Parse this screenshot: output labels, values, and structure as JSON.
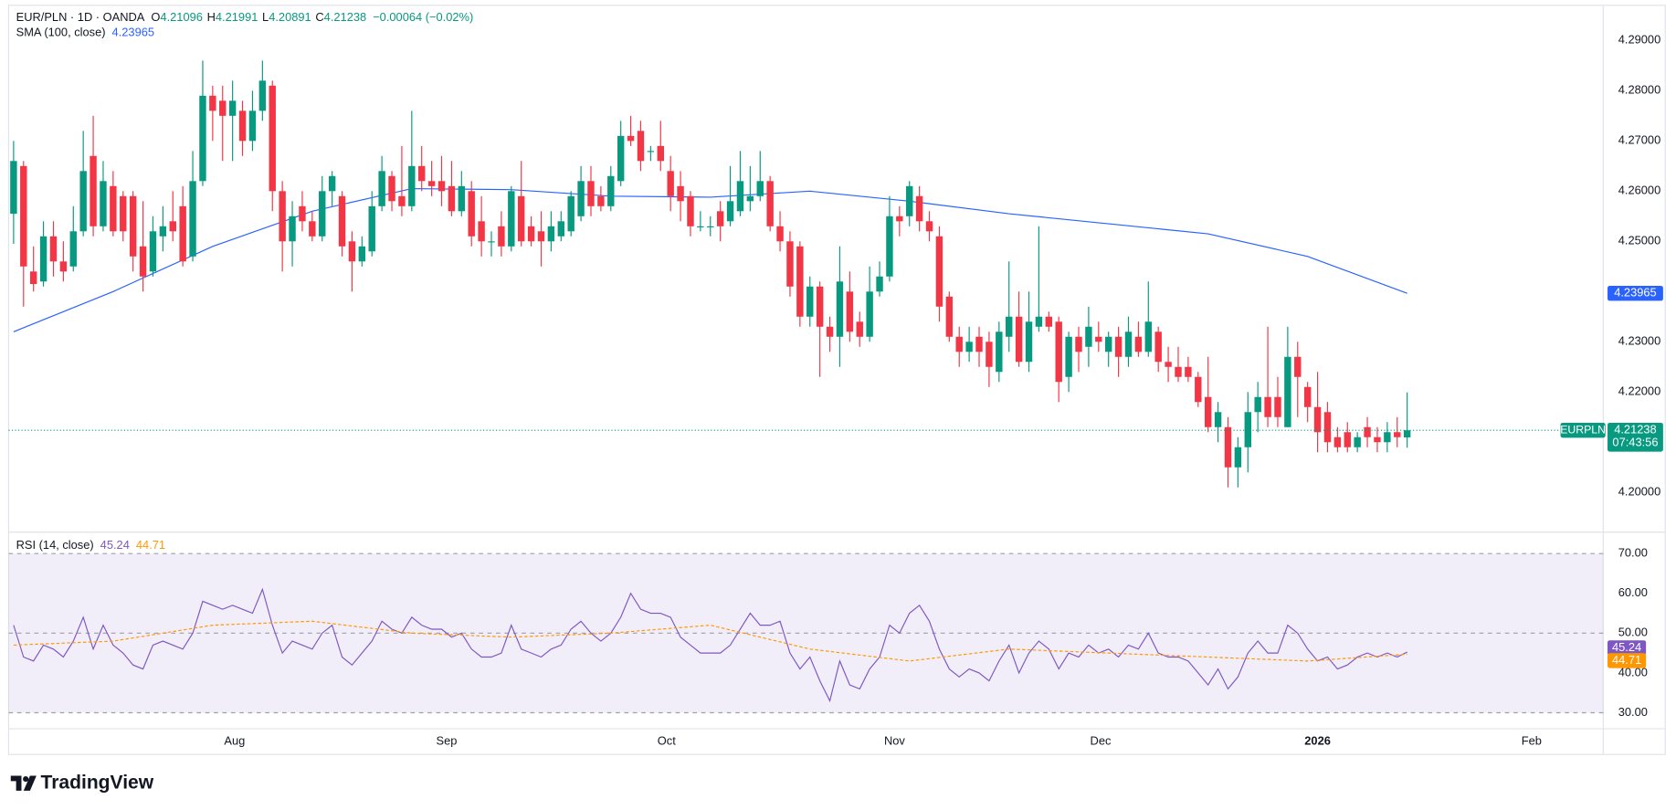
{
  "chart_data": [
    {
      "type": "candlestick",
      "title": "EUR/PLN · 1D · OANDA",
      "ohlc_labels": [
        "O",
        "H",
        "L",
        "C"
      ],
      "change": "−0.00064 (−0.02%)",
      "symbol": "EURPLN",
      "countdown": "07:43:56",
      "up_color": "#089981",
      "down_color": "#f23645",
      "open": [
        4.2555,
        4.265,
        4.244,
        4.242,
        4.251,
        4.246,
        4.245,
        4.252,
        4.267,
        4.253,
        4.261,
        4.259,
        4.259,
        4.249,
        4.244,
        4.251,
        4.254,
        4.257,
        4.247,
        4.262,
        4.279,
        4.278,
        4.275,
        4.276,
        4.27,
        4.276,
        4.281,
        4.26,
        4.25,
        4.257,
        4.254,
        4.251,
        4.26,
        4.259,
        4.25,
        4.246,
        4.248,
        4.257,
        4.263,
        4.259,
        4.257,
        4.265,
        4.262,
        4.262,
        4.261,
        4.256,
        4.26,
        4.254,
        4.25,
        4.253,
        4.249,
        4.259,
        4.253,
        4.252,
        4.25,
        4.251,
        4.252,
        4.255,
        4.262,
        4.259,
        4.257,
        4.262,
        4.271,
        4.272,
        4.268,
        4.269,
        4.264,
        4.261,
        4.259,
        4.253,
        4.253,
        4.256,
        4.254,
        4.256,
        4.258,
        4.259,
        4.262,
        4.253,
        4.25,
        4.249,
        4.235,
        4.241,
        4.233,
        4.231,
        4.24,
        4.234,
        4.231,
        4.24,
        4.243,
        4.255,
        4.255,
        4.259,
        4.254,
        4.251,
        4.239,
        4.231,
        4.228,
        4.231,
        4.23,
        4.224,
        4.231,
        4.235,
        4.226,
        4.233,
        4.235,
        4.234,
        4.223,
        4.231,
        4.229,
        4.231,
        4.228,
        4.231,
        4.227,
        4.231,
        4.228,
        4.232,
        4.226,
        4.225,
        4.225,
        4.223,
        4.219,
        4.213,
        4.213,
        4.205,
        4.209,
        4.216,
        4.219,
        4.219,
        4.213,
        4.227,
        4.221,
        4.217,
        4.216,
        4.211,
        4.212,
        4.209,
        4.213,
        4.211,
        4.21,
        4.212,
        4.21096
      ],
      "high": [
        4.27,
        4.266,
        4.249,
        4.254,
        4.254,
        4.25,
        4.257,
        4.272,
        4.275,
        4.266,
        4.264,
        4.26,
        4.26,
        4.258,
        4.255,
        4.257,
        4.26,
        4.261,
        4.268,
        4.286,
        4.281,
        4.281,
        4.282,
        4.278,
        4.28,
        4.286,
        4.282,
        4.262,
        4.258,
        4.26,
        4.256,
        4.263,
        4.264,
        4.26,
        4.252,
        4.251,
        4.26,
        4.267,
        4.264,
        4.269,
        4.276,
        4.269,
        4.266,
        4.267,
        4.266,
        4.264,
        4.262,
        4.259,
        4.252,
        4.256,
        4.261,
        4.266,
        4.255,
        4.256,
        4.256,
        4.256,
        4.26,
        4.265,
        4.265,
        4.261,
        4.265,
        4.274,
        4.275,
        4.274,
        4.269,
        4.274,
        4.267,
        4.264,
        4.26,
        4.256,
        4.255,
        4.258,
        4.265,
        4.268,
        4.265,
        4.268,
        4.263,
        4.256,
        4.252,
        4.25,
        4.243,
        4.242,
        4.235,
        4.249,
        4.244,
        4.236,
        4.245,
        4.246,
        4.259,
        4.257,
        4.262,
        4.261,
        4.256,
        4.253,
        4.24,
        4.233,
        4.233,
        4.233,
        4.232,
        4.234,
        4.246,
        4.24,
        4.24,
        4.253,
        4.236,
        4.235,
        4.232,
        4.233,
        4.237,
        4.234,
        4.232,
        4.233,
        4.235,
        4.234,
        4.242,
        4.233,
        4.229,
        4.229,
        4.227,
        4.224,
        4.227,
        4.218,
        4.215,
        4.211,
        4.22,
        4.222,
        4.233,
        4.223,
        4.233,
        4.23,
        4.222,
        4.224,
        4.218,
        4.213,
        4.214,
        4.212,
        4.215,
        4.213,
        4.214,
        4.215,
        4.21991
      ],
      "low": [
        4.2495,
        4.237,
        4.24,
        4.241,
        4.243,
        4.242,
        4.244,
        4.251,
        4.251,
        4.252,
        4.251,
        4.25,
        4.244,
        4.24,
        4.243,
        4.248,
        4.25,
        4.245,
        4.246,
        4.261,
        4.27,
        4.266,
        4.266,
        4.267,
        4.268,
        4.274,
        4.256,
        4.244,
        4.245,
        4.252,
        4.25,
        4.25,
        4.257,
        4.247,
        4.24,
        4.245,
        4.247,
        4.256,
        4.256,
        4.255,
        4.256,
        4.26,
        4.259,
        4.257,
        4.255,
        4.255,
        4.249,
        4.247,
        4.247,
        4.247,
        4.248,
        4.249,
        4.249,
        4.245,
        4.248,
        4.25,
        4.251,
        4.254,
        4.255,
        4.256,
        4.256,
        4.261,
        4.269,
        4.264,
        4.266,
        4.264,
        4.256,
        4.254,
        4.251,
        4.252,
        4.251,
        4.25,
        4.253,
        4.255,
        4.256,
        4.258,
        4.252,
        4.248,
        4.239,
        4.233,
        4.233,
        4.223,
        4.228,
        4.225,
        4.23,
        4.229,
        4.23,
        4.239,
        4.242,
        4.251,
        4.253,
        4.252,
        4.25,
        4.234,
        4.23,
        4.225,
        4.226,
        4.225,
        4.221,
        4.222,
        4.228,
        4.225,
        4.224,
        4.232,
        4.232,
        4.218,
        4.22,
        4.224,
        4.225,
        4.228,
        4.225,
        4.223,
        4.225,
        4.227,
        4.227,
        4.224,
        4.222,
        4.222,
        4.222,
        4.217,
        4.212,
        4.21,
        4.201,
        4.201,
        4.204,
        4.212,
        4.213,
        4.213,
        4.213,
        4.215,
        4.214,
        4.208,
        4.208,
        4.208,
        4.208,
        4.208,
        4.209,
        4.208,
        4.208,
        4.209,
        4.20891
      ],
      "close": [
        4.266,
        4.245,
        4.2415,
        4.251,
        4.246,
        4.244,
        4.252,
        4.264,
        4.253,
        4.262,
        4.252,
        4.252,
        4.247,
        4.243,
        4.252,
        4.253,
        4.252,
        4.246,
        4.262,
        4.279,
        4.276,
        4.275,
        4.278,
        4.27,
        4.276,
        4.282,
        4.26,
        4.25,
        4.255,
        4.254,
        4.251,
        4.26,
        4.263,
        4.249,
        4.246,
        4.249,
        4.257,
        4.264,
        4.258,
        4.257,
        4.265,
        4.262,
        4.261,
        4.26,
        4.256,
        4.261,
        4.251,
        4.25,
        4.25,
        4.249,
        4.26,
        4.25,
        4.25,
        4.25,
        4.253,
        4.254,
        4.259,
        4.262,
        4.257,
        4.257,
        4.263,
        4.271,
        4.27,
        4.266,
        4.268,
        4.266,
        4.259,
        4.258,
        4.253,
        4.253,
        4.253,
        4.253,
        4.258,
        4.262,
        4.259,
        4.262,
        4.253,
        4.25,
        4.241,
        4.235,
        4.241,
        4.233,
        4.231,
        4.242,
        4.232,
        4.231,
        4.24,
        4.243,
        4.255,
        4.254,
        4.261,
        4.254,
        4.252,
        4.237,
        4.231,
        4.228,
        4.23,
        4.228,
        4.225,
        4.232,
        4.235,
        4.226,
        4.234,
        4.235,
        4.233,
        4.222,
        4.231,
        4.228,
        4.233,
        4.23,
        4.231,
        4.227,
        4.232,
        4.228,
        4.234,
        4.226,
        4.225,
        4.223,
        4.223,
        4.218,
        4.213,
        4.216,
        4.205,
        4.209,
        4.216,
        4.219,
        4.215,
        4.215,
        4.227,
        4.223,
        4.217,
        4.212,
        4.21,
        4.209,
        4.209,
        4.211,
        4.211,
        4.21,
        4.212,
        4.211,
        4.21238
      ],
      "sma": {
        "name": "SMA (100, close)",
        "color": "#2962ff",
        "x": [
          0,
          10,
          20,
          30,
          40,
          50,
          60,
          70,
          80,
          90,
          100,
          110,
          120,
          130,
          140
        ],
        "values": [
          4.232,
          4.24,
          4.249,
          4.256,
          4.2605,
          4.2603,
          4.259,
          4.2588,
          4.26,
          4.258,
          4.2555,
          4.2535,
          4.2515,
          4.247,
          4.23965
        ]
      },
      "xlim": [
        -0.5,
        159.7
      ],
      "xticks": [
        {
          "value": 22.2,
          "label": "Aug"
        },
        {
          "value": 43.5,
          "label": "Sep"
        },
        {
          "value": 65.6,
          "label": "Oct"
        },
        {
          "value": 88.5,
          "label": "Nov"
        },
        {
          "value": 109.2,
          "label": "Dec"
        },
        {
          "value": 131.0,
          "label": "2026"
        },
        {
          "value": 152.5,
          "label": "Feb"
        }
      ],
      "ylim": [
        4.1923,
        4.297
      ],
      "yticks": [
        {
          "value": 4.29,
          "label": "4.29000"
        },
        {
          "value": 4.28,
          "label": "4.28000"
        },
        {
          "value": 4.27,
          "label": "4.27000"
        },
        {
          "value": 4.26,
          "label": "4.26000"
        },
        {
          "value": 4.25,
          "label": "4.25000"
        },
        {
          "value": 4.23,
          "label": "4.23000"
        },
        {
          "value": 4.22,
          "label": "4.22000"
        },
        {
          "value": 4.2,
          "label": "4.20000"
        }
      ],
      "grid": false
    },
    {
      "type": "line",
      "title": "RSI (14, close)",
      "series": [
        {
          "color": "#7e57c2",
          "values": [
            52,
            44,
            43,
            47,
            46,
            44,
            48,
            54,
            46,
            52,
            47,
            45,
            42,
            41,
            47,
            48,
            47,
            46,
            50,
            58,
            57,
            56,
            57,
            56,
            55,
            61,
            52,
            45,
            48,
            47,
            46,
            50,
            52,
            44,
            42,
            45,
            48,
            53,
            51,
            50,
            54,
            52,
            51,
            51,
            49,
            50,
            46,
            44,
            44,
            45,
            52,
            46,
            45,
            44,
            46,
            47,
            51,
            53,
            50,
            48,
            50,
            54,
            60,
            56,
            55,
            55,
            54,
            49,
            47,
            45,
            45,
            45,
            47,
            51,
            55,
            52,
            52,
            53,
            45,
            41,
            44,
            38,
            33,
            43,
            37,
            36,
            41,
            44,
            52,
            50,
            55,
            57,
            53,
            46,
            41,
            39,
            41,
            40,
            38,
            43,
            47,
            40,
            45,
            48,
            46,
            41,
            45,
            44,
            47,
            45,
            46,
            44,
            47,
            46,
            50,
            45,
            44,
            44,
            43,
            40,
            37,
            41,
            36,
            39,
            45,
            48,
            45,
            45,
            52,
            50,
            46,
            43,
            44,
            41,
            42,
            44,
            45,
            44,
            45,
            44,
            45.24
          ]
        },
        {
          "color": "#ff9800",
          "dashed": true,
          "x": [
            0,
            10,
            20,
            30,
            40,
            50,
            60,
            70,
            80,
            90,
            100,
            110,
            120,
            130,
            140
          ],
          "values": [
            47,
            48,
            52,
            53,
            50,
            49,
            50,
            52,
            46,
            43,
            46,
            45,
            44,
            43,
            44.71
          ]
        }
      ],
      "band": [
        30,
        70
      ],
      "band_color": "#7e57c2",
      "levels": [
        70,
        50,
        30
      ],
      "ylim": [
        26.51,
        75.37
      ],
      "yticks": [
        {
          "value": 70,
          "label": "70.00"
        },
        {
          "value": 60,
          "label": "60.00"
        },
        {
          "value": 50,
          "label": "50.00"
        },
        {
          "value": 40,
          "label": "40.00"
        },
        {
          "value": 30,
          "label": "30.00"
        }
      ],
      "grid": false
    }
  ],
  "brand": "TradingView"
}
